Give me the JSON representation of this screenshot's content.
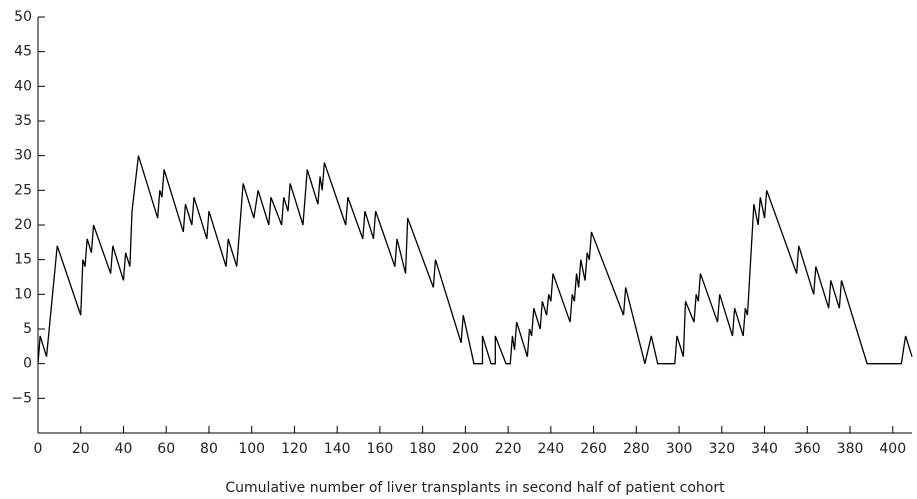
{
  "chart_data": {
    "type": "line",
    "x_label": "Cumulative number of liver transplants in second half of patient cohort",
    "x": [
      0,
      1,
      4,
      9,
      20,
      21,
      22,
      23,
      25,
      26,
      34,
      35,
      40,
      41,
      43,
      44,
      47,
      56,
      57,
      58,
      59,
      68,
      69,
      72,
      73,
      79,
      80,
      88,
      89,
      93,
      96,
      101,
      103,
      108,
      109,
      114,
      115,
      117,
      118,
      124,
      126,
      131,
      132,
      133,
      134,
      144,
      145,
      152,
      153,
      157,
      158,
      167,
      168,
      172,
      173,
      185,
      186,
      198,
      199,
      204,
      208,
      208,
      212,
      214,
      214,
      219,
      221,
      222,
      223,
      224,
      229,
      230,
      231,
      232,
      235,
      236,
      238,
      239,
      240,
      241,
      249,
      250,
      251,
      252,
      253,
      254,
      256,
      257,
      258,
      259,
      274,
      275,
      284,
      287,
      290,
      298,
      299,
      302,
      303,
      307,
      308,
      309,
      310,
      318,
      319,
      325,
      326,
      330,
      331,
      332,
      335,
      337,
      338,
      340,
      341,
      355,
      356,
      363,
      364,
      370,
      371,
      375,
      376,
      388,
      404,
      406,
      409
    ],
    "series": [
      {
        "color": "#000000",
        "values": [
          0,
          4,
          1,
          17,
          7,
          15,
          14,
          18,
          16,
          20,
          13,
          17,
          12,
          16,
          14,
          22,
          30,
          21,
          25,
          24,
          28,
          19,
          23,
          20,
          24,
          18,
          22,
          14,
          18,
          14,
          26,
          21,
          25,
          20,
          24,
          20,
          24,
          22,
          26,
          20,
          28,
          23,
          27,
          25,
          29,
          20,
          24,
          18,
          22,
          18,
          22,
          14,
          18,
          13,
          21,
          11,
          15,
          3,
          7,
          0,
          0,
          4,
          0,
          0,
          4,
          0,
          0,
          4,
          2,
          6,
          1,
          5,
          4,
          8,
          5,
          9,
          7,
          10,
          9,
          13,
          6,
          10,
          9,
          13,
          11,
          15,
          12,
          16,
          15,
          19,
          7,
          11,
          0,
          4,
          0,
          0,
          4,
          1,
          9,
          6,
          10,
          9,
          13,
          6,
          10,
          4,
          8,
          4,
          8,
          7,
          23,
          20,
          24,
          21,
          25,
          13,
          17,
          10,
          14,
          8,
          12,
          8,
          12,
          0,
          0,
          4,
          1
        ]
      }
    ],
    "xlim": [
      0,
      409
    ],
    "ylim": [
      -10,
      50
    ],
    "xticks": [
      0,
      20,
      40,
      60,
      80,
      100,
      120,
      140,
      160,
      180,
      200,
      220,
      240,
      260,
      280,
      300,
      320,
      340,
      360,
      380,
      400
    ],
    "yticks": [
      {
        "value": -5,
        "label": "−5"
      },
      0,
      5,
      10,
      15,
      20,
      25,
      30,
      35,
      40,
      45,
      50
    ]
  }
}
